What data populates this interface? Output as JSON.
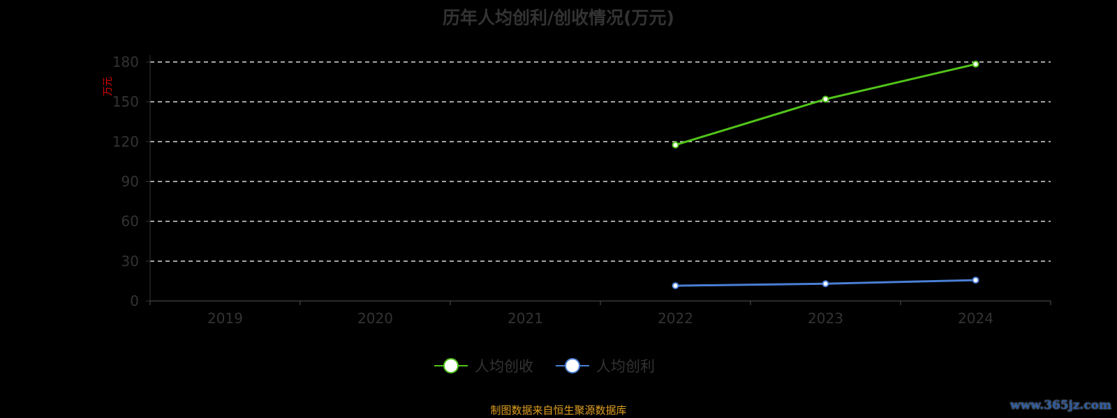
{
  "chart_data": {
    "type": "line",
    "title": "历年人均创利/创收情况(万元)",
    "ylabel": "万元",
    "xlabel": "",
    "categories": [
      "2019",
      "2020",
      "2021",
      "2022",
      "2023",
      "2024"
    ],
    "ylim": [
      0,
      180
    ],
    "yticks": [
      0,
      30,
      60,
      90,
      120,
      150,
      180
    ],
    "grid": true,
    "legend_position": "bottom",
    "series": [
      {
        "name": "人均创收",
        "color": "#52c41a",
        "values": [
          null,
          null,
          null,
          117.5,
          152,
          178.4
        ]
      },
      {
        "name": "人均创利",
        "color": "#4a7fd6",
        "values": [
          null,
          null,
          null,
          11.5,
          13,
          15.7
        ]
      }
    ]
  },
  "source": "制图数据来自恒生聚源数据库",
  "watermark": "www.365jz.com"
}
